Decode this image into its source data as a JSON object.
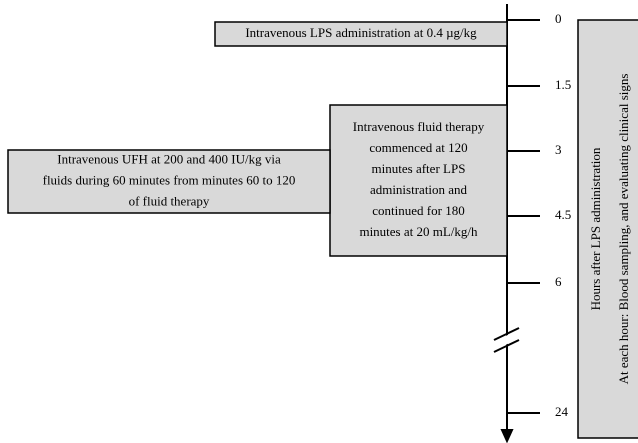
{
  "timeline": {
    "ticks": [
      "0",
      "1.5",
      "3",
      "4.5",
      "6",
      "24"
    ]
  },
  "boxes": [
    {
      "lines": [
        "Intravenous LPS administration at 0.4 µg/kg"
      ]
    },
    {
      "lines": [
        "Intravenous fluid therapy",
        "commenced at 120",
        "minutes after LPS",
        "administration and",
        "continued for 180",
        "minutes at 20 mL/kg/h"
      ]
    },
    {
      "lines": [
        "Intravenous UFH at 200 and 400 IU/kg via",
        "fluids during 60 minutes from minutes 60 to 120",
        "of fluid therapy"
      ]
    }
  ],
  "side_note": {
    "lines": [
      "Hours after LPS administration",
      "At each hour: Blood sampling, and evaluating clinical signs"
    ]
  }
}
